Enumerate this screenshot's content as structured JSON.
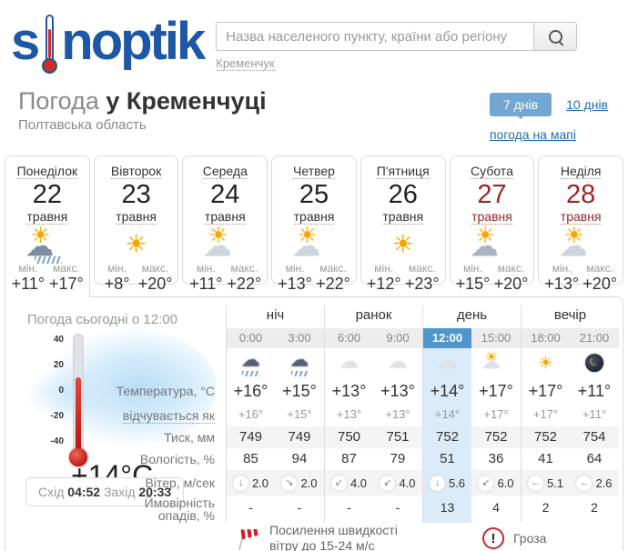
{
  "brand": {
    "logo_text_start": "s",
    "logo_text_end": "noptik"
  },
  "search": {
    "placeholder": "Назва населеного пункту, країни або регіону",
    "current_city": "Кременчук"
  },
  "header": {
    "title_prefix": "Погода",
    "title_city": "у Кременчуці",
    "region": "Полтавська область",
    "range_7": "7 днів",
    "range_10": "10 днів",
    "map_link": "погода на мапі"
  },
  "day_labels": {
    "min": "мін.",
    "max": "макс."
  },
  "days": [
    {
      "name": "Понеділок",
      "date": "22",
      "month": "травня",
      "icon": "sun-rain-icon",
      "min": "+11°",
      "max": "+17°",
      "weekend": false,
      "selected": true
    },
    {
      "name": "Вівторок",
      "date": "23",
      "month": "травня",
      "icon": "sun-icon",
      "min": "+8°",
      "max": "+20°",
      "weekend": false,
      "selected": false
    },
    {
      "name": "Середа",
      "date": "24",
      "month": "травня",
      "icon": "sun-cloud-icon",
      "min": "+11°",
      "max": "+22°",
      "weekend": false,
      "selected": false
    },
    {
      "name": "Четвер",
      "date": "25",
      "month": "травня",
      "icon": "sun-cloud-icon",
      "min": "+13°",
      "max": "+22°",
      "weekend": false,
      "selected": false
    },
    {
      "name": "П'ятниця",
      "date": "26",
      "month": "травня",
      "icon": "sun-icon",
      "min": "+12°",
      "max": "+23°",
      "weekend": false,
      "selected": false
    },
    {
      "name": "Субота",
      "date": "27",
      "month": "травня",
      "icon": "sun-clouds-icon",
      "min": "+15°",
      "max": "+20°",
      "weekend": true,
      "selected": false
    },
    {
      "name": "Неділя",
      "date": "28",
      "month": "травня",
      "icon": "sun-cloud-icon",
      "min": "+13°",
      "max": "+20°",
      "weekend": true,
      "selected": false
    }
  ],
  "today": {
    "title": "Погода сьогодні о 12:00",
    "current_temp": "+14°C",
    "thermometer_scale": [
      "40",
      "20",
      "0",
      "-20",
      "-40"
    ],
    "sun": {
      "rise_label": "Схід",
      "rise": "04:52",
      "set_label": "Захід",
      "set": "20:33"
    },
    "periods": [
      "ніч",
      "ранок",
      "день",
      "вечір"
    ],
    "hours": [
      "0:00",
      "3:00",
      "6:00",
      "9:00",
      "12:00",
      "15:00",
      "18:00",
      "21:00"
    ],
    "active_hour_index": 4,
    "hour_icons": [
      "rain-night-icon",
      "rain-night-icon",
      "cloud-icon",
      "cloud-icon",
      "cloud-icon",
      "cloud-sun-icon",
      "sun-icon",
      "moon-icon"
    ],
    "rows": [
      {
        "label": "Температура, °C",
        "kind": "temp",
        "values": [
          "+16°",
          "+15°",
          "+13°",
          "+13°",
          "+14°",
          "+17°",
          "+17°",
          "+11°"
        ]
      },
      {
        "label": "відчувається як",
        "kind": "feels",
        "dotted": true,
        "values": [
          "+16°",
          "+15°",
          "+13°",
          "+13°",
          "+14°",
          "+17°",
          "+17°",
          "+11°"
        ]
      },
      {
        "label": "Тиск, мм",
        "kind": "plain",
        "shaded": true,
        "values": [
          "749",
          "749",
          "750",
          "751",
          "752",
          "752",
          "752",
          "754"
        ]
      },
      {
        "label": "Вологість, %",
        "kind": "plain",
        "values": [
          "85",
          "94",
          "87",
          "79",
          "51",
          "36",
          "41",
          "64"
        ]
      },
      {
        "label": "Вітер, м/сек",
        "kind": "wind",
        "shaded": true,
        "dirs": [
          "↓",
          "↘",
          "↙",
          "↙",
          "↓",
          "↙",
          "←",
          "←"
        ],
        "values": [
          "2.0",
          "2.0",
          "4.0",
          "4.0",
          "5.6",
          "6.0",
          "5.1",
          "2.6"
        ]
      },
      {
        "label": "Ймовірність опадів, %",
        "kind": "precip",
        "narrow": true,
        "values": [
          "-",
          "-",
          "-",
          "-",
          "13",
          "4",
          "2",
          "2"
        ]
      }
    ]
  },
  "warnings": [
    {
      "icon": "windsock-icon",
      "text": "Посилення швидкості вітру до 15-24 м/с"
    },
    {
      "icon": "thunderstorm-alert-icon",
      "text": "Гроза"
    }
  ],
  "colors": {
    "logo_blue": "#1d57a5",
    "accent_blue": "#4f96cf",
    "highlight_column": "#dcebf8",
    "weekend_red": "#9b2626",
    "warning_red": "#d31e25"
  }
}
